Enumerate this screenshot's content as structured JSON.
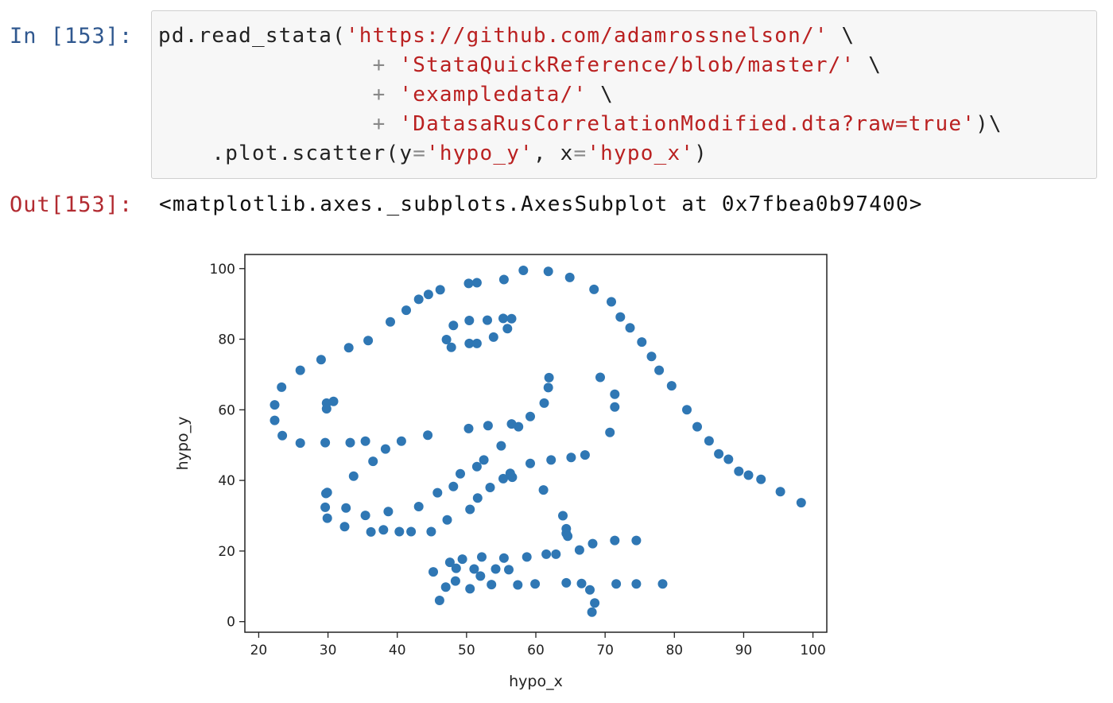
{
  "cells": {
    "input": {
      "prompt": "In [153]:",
      "lines": [
        [
          "pd.read_stata(",
          "'https://github.com/adamrossnelson/'",
          " \\"
        ],
        [
          "                ",
          "+",
          " ",
          "'StataQuickReference/blob/master/'",
          " \\"
        ],
        [
          "                ",
          "+",
          " ",
          "'exampledata/'",
          " \\"
        ],
        [
          "                ",
          "+",
          " ",
          "'DatasaRusCorrelationModified.dta?raw=true'",
          ")\\"
        ],
        [
          "    .plot.scatter(y",
          "=",
          "'hypo_y'",
          ", x",
          "=",
          "'hypo_x'",
          ")"
        ]
      ]
    },
    "output": {
      "prompt": "Out[153]:",
      "text": "<matplotlib.axes._subplots.AxesSubplot at 0x7fbea0b97400>"
    }
  },
  "colors": {
    "marker": "#2f77b4",
    "axis": "#222222",
    "string": "#ba2121"
  },
  "chart_data": {
    "type": "scatter",
    "xlabel": "hypo_x",
    "ylabel": "hypo_y",
    "xlim": [
      18,
      102
    ],
    "ylim": [
      -3,
      104
    ],
    "xticks": [
      20,
      30,
      40,
      50,
      60,
      70,
      80,
      90,
      100
    ],
    "yticks": [
      0,
      20,
      40,
      60,
      80,
      100
    ],
    "grid": false,
    "points": [
      [
        22.3,
        61.4
      ],
      [
        22.3,
        57.0
      ],
      [
        23.3,
        66.4
      ],
      [
        23.4,
        52.7
      ],
      [
        26.0,
        71.2
      ],
      [
        26.0,
        50.6
      ],
      [
        29.0,
        74.2
      ],
      [
        29.6,
        50.7
      ],
      [
        29.8,
        61.9
      ],
      [
        29.8,
        60.3
      ],
      [
        30.8,
        62.4
      ],
      [
        29.7,
        36.3
      ],
      [
        29.9,
        36.6
      ],
      [
        29.6,
        32.4
      ],
      [
        29.9,
        29.3
      ],
      [
        33.0,
        77.6
      ],
      [
        33.2,
        50.7
      ],
      [
        33.7,
        41.2
      ],
      [
        32.6,
        32.2
      ],
      [
        32.4,
        26.9
      ],
      [
        35.8,
        79.6
      ],
      [
        35.4,
        51.1
      ],
      [
        35.4,
        30.1
      ],
      [
        36.2,
        25.4
      ],
      [
        36.5,
        45.4
      ],
      [
        38.3,
        48.9
      ],
      [
        39.0,
        84.9
      ],
      [
        38.7,
        31.2
      ],
      [
        38.0,
        26.0
      ],
      [
        40.3,
        25.5
      ],
      [
        40.6,
        51.1
      ],
      [
        41.3,
        88.2
      ],
      [
        42.0,
        25.5
      ],
      [
        43.1,
        91.3
      ],
      [
        43.1,
        32.6
      ],
      [
        44.5,
        92.7
      ],
      [
        44.4,
        52.8
      ],
      [
        44.9,
        25.5
      ],
      [
        45.2,
        14.1
      ],
      [
        45.8,
        36.5
      ],
      [
        46.2,
        94.0
      ],
      [
        46.1,
        6.0
      ],
      [
        47.1,
        79.9
      ],
      [
        47.6,
        16.8
      ],
      [
        47.0,
        9.8
      ],
      [
        47.2,
        28.8
      ],
      [
        47.8,
        77.7
      ],
      [
        48.1,
        83.9
      ],
      [
        48.1,
        38.3
      ],
      [
        48.5,
        15.1
      ],
      [
        48.4,
        11.5
      ],
      [
        49.1,
        41.9
      ],
      [
        49.4,
        17.7
      ],
      [
        50.3,
        95.8
      ],
      [
        50.3,
        54.7
      ],
      [
        50.4,
        85.3
      ],
      [
        50.4,
        78.8
      ],
      [
        50.5,
        31.8
      ],
      [
        50.5,
        9.3
      ],
      [
        51.5,
        96.0
      ],
      [
        51.5,
        78.8
      ],
      [
        51.5,
        43.9
      ],
      [
        51.1,
        14.9
      ],
      [
        51.6,
        35.0
      ],
      [
        52.0,
        12.9
      ],
      [
        52.2,
        18.3
      ],
      [
        52.5,
        45.8
      ],
      [
        53.0,
        85.4
      ],
      [
        53.1,
        55.5
      ],
      [
        53.4,
        38.0
      ],
      [
        53.6,
        10.5
      ],
      [
        53.9,
        80.6
      ],
      [
        54.2,
        14.9
      ],
      [
        55.0,
        49.8
      ],
      [
        55.4,
        96.9
      ],
      [
        55.3,
        85.9
      ],
      [
        55.3,
        40.5
      ],
      [
        55.4,
        18.0
      ],
      [
        55.9,
        83.0
      ],
      [
        56.1,
        14.7
      ],
      [
        56.5,
        85.8
      ],
      [
        56.5,
        56.0
      ],
      [
        56.6,
        40.9
      ],
      [
        56.3,
        42.0
      ],
      [
        57.5,
        55.2
      ],
      [
        57.4,
        10.4
      ],
      [
        58.2,
        99.5
      ],
      [
        58.7,
        18.3
      ],
      [
        59.2,
        58.1
      ],
      [
        59.2,
        44.8
      ],
      [
        59.9,
        10.7
      ],
      [
        61.2,
        61.9
      ],
      [
        61.1,
        37.3
      ],
      [
        61.5,
        19.1
      ],
      [
        61.8,
        66.3
      ],
      [
        61.9,
        69.1
      ],
      [
        61.8,
        99.2
      ],
      [
        62.2,
        45.8
      ],
      [
        62.9,
        19.1
      ],
      [
        63.9,
        30.0
      ],
      [
        64.4,
        26.3
      ],
      [
        64.4,
        25.0
      ],
      [
        64.4,
        11.0
      ],
      [
        64.6,
        24.2
      ],
      [
        64.9,
        97.5
      ],
      [
        65.1,
        46.5
      ],
      [
        66.3,
        20.3
      ],
      [
        66.6,
        10.8
      ],
      [
        67.1,
        47.2
      ],
      [
        67.8,
        9.0
      ],
      [
        68.2,
        22.1
      ],
      [
        68.1,
        2.7
      ],
      [
        68.5,
        5.3
      ],
      [
        68.4,
        94.1
      ],
      [
        69.3,
        69.2
      ],
      [
        70.7,
        53.6
      ],
      [
        70.9,
        90.6
      ],
      [
        71.4,
        64.4
      ],
      [
        71.4,
        60.8
      ],
      [
        71.4,
        23.0
      ],
      [
        71.6,
        10.7
      ],
      [
        72.2,
        86.3
      ],
      [
        73.6,
        83.2
      ],
      [
        74.5,
        23.0
      ],
      [
        74.5,
        10.7
      ],
      [
        75.3,
        79.2
      ],
      [
        76.7,
        75.1
      ],
      [
        77.8,
        71.2
      ],
      [
        78.3,
        10.7
      ],
      [
        79.6,
        66.8
      ],
      [
        81.8,
        60.0
      ],
      [
        83.3,
        55.2
      ],
      [
        85.0,
        51.2
      ],
      [
        86.4,
        47.5
      ],
      [
        87.8,
        46.0
      ],
      [
        89.3,
        42.6
      ],
      [
        90.7,
        41.5
      ],
      [
        92.5,
        40.3
      ],
      [
        95.3,
        36.8
      ],
      [
        98.3,
        33.7
      ]
    ]
  }
}
